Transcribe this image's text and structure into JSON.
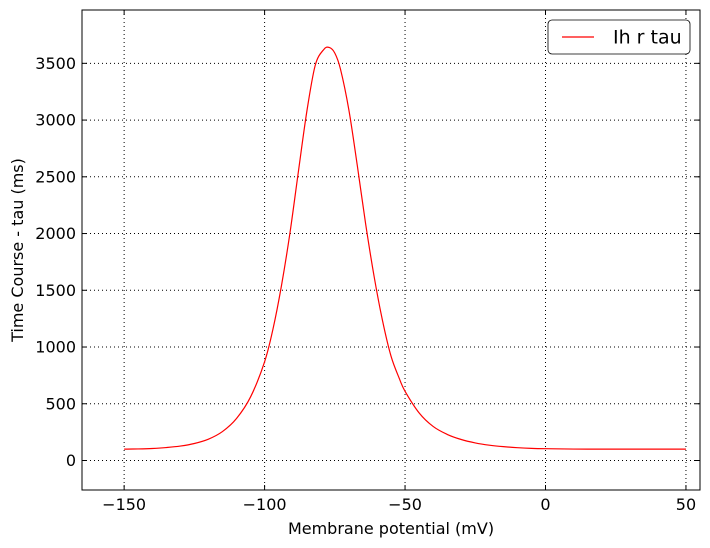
{
  "chart_data": {
    "type": "line",
    "title": "",
    "xlabel": "Membrane potential (mV)",
    "ylabel": "Time Course - tau (ms)",
    "xlim": [
      -165,
      55
    ],
    "ylim": [
      -260,
      3970
    ],
    "xticks": [
      -150,
      -100,
      -50,
      0,
      50
    ],
    "yticks": [
      0,
      500,
      1000,
      1500,
      2000,
      2500,
      3000,
      3500
    ],
    "x_tick_labels": [
      "−150",
      "−100",
      "−50",
      "0",
      "50"
    ],
    "y_tick_labels": [
      "0",
      "500",
      "1000",
      "1500",
      "2000",
      "2500",
      "3000",
      "3500"
    ],
    "grid": true,
    "legend_position": "top-right",
    "series": [
      {
        "name": "Ih r tau",
        "color": "#ff0000",
        "x": [
          -150,
          -145,
          -140,
          -135,
          -130,
          -125,
          -120,
          -115,
          -110,
          -105,
          -100,
          -97,
          -94,
          -91,
          -88,
          -85,
          -82,
          -79,
          -77,
          -75,
          -73,
          -70,
          -67,
          -64,
          -61,
          -58,
          -55,
          -52,
          -50,
          -45,
          -40,
          -35,
          -30,
          -25,
          -20,
          -15,
          -10,
          -5,
          0,
          10,
          20,
          30,
          40,
          50
        ],
        "y": [
          100,
          102,
          106,
          114,
          127,
          150,
          188,
          255,
          370,
          560,
          870,
          1160,
          1540,
          2000,
          2540,
          3070,
          3480,
          3620,
          3640,
          3590,
          3450,
          3090,
          2600,
          2080,
          1620,
          1230,
          920,
          720,
          610,
          420,
          300,
          230,
          185,
          155,
          135,
          122,
          113,
          107,
          104,
          101,
          100,
          100,
          100,
          100
        ]
      }
    ]
  }
}
